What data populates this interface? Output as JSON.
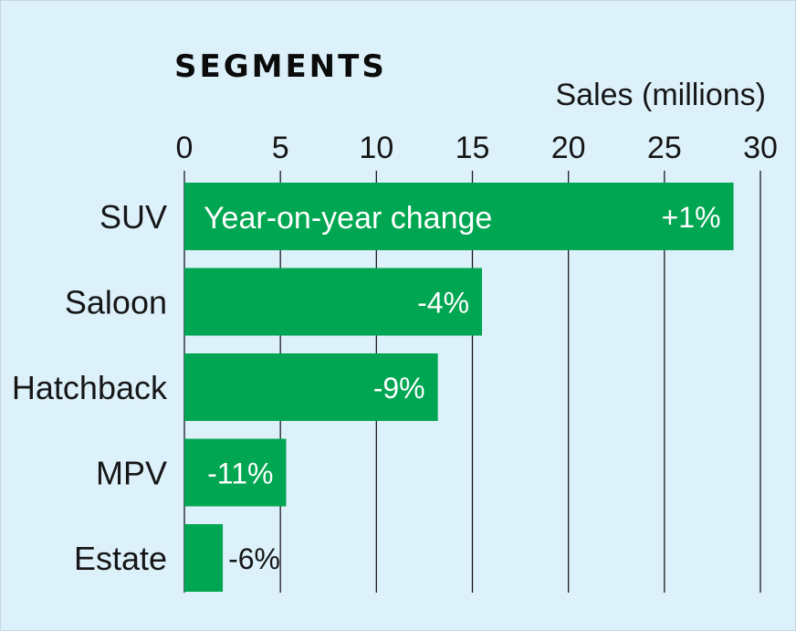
{
  "chart_data": {
    "type": "bar",
    "orientation": "horizontal",
    "title": "SEGMENTS",
    "xlabel": "Sales (millions)",
    "ylabel": "",
    "xlim": [
      0,
      30
    ],
    "x_ticks": [
      0,
      5,
      10,
      15,
      20,
      25,
      30
    ],
    "grid": true,
    "categories": [
      "SUV",
      "Saloon",
      "Hatchback",
      "MPV",
      "Estate"
    ],
    "values": [
      28.6,
      15.5,
      13.2,
      5.3,
      2.0
    ],
    "data_labels": [
      "+1%",
      "-4%",
      "-9%",
      "-11%",
      "-6%"
    ],
    "annotation": "Year-on-year change",
    "colors": {
      "bar": "#00a651",
      "background": "#ddf1fb",
      "grid": "#1a1a1a",
      "label_inside": "#ffffff",
      "label_outside": "#161616"
    }
  }
}
